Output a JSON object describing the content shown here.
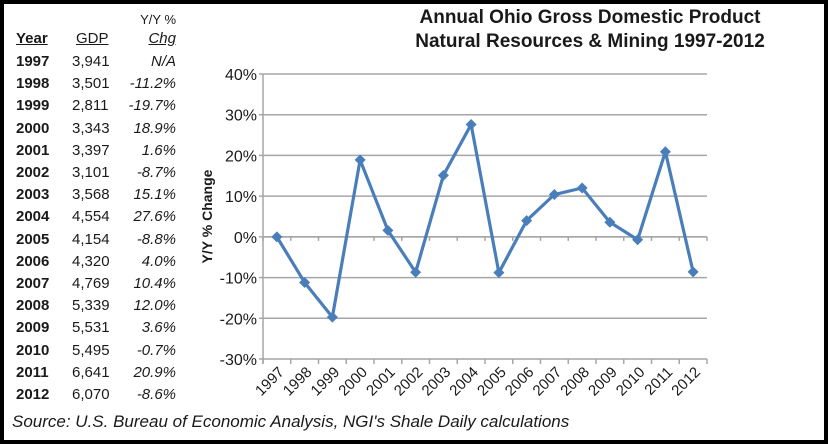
{
  "table": {
    "header_top": "Y/Y %",
    "columns": [
      "Year",
      "GDP",
      "Chg"
    ],
    "rows": [
      {
        "year": "1997",
        "gdp": "3,941",
        "chg": "N/A"
      },
      {
        "year": "1998",
        "gdp": "3,501",
        "chg": "-11.2%"
      },
      {
        "year": "1999",
        "gdp": "2,811",
        "chg": "-19.7%"
      },
      {
        "year": "2000",
        "gdp": "3,343",
        "chg": "18.9%"
      },
      {
        "year": "2001",
        "gdp": "3,397",
        "chg": "1.6%"
      },
      {
        "year": "2002",
        "gdp": "3,101",
        "chg": "-8.7%"
      },
      {
        "year": "2003",
        "gdp": "3,568",
        "chg": "15.1%"
      },
      {
        "year": "2004",
        "gdp": "4,554",
        "chg": "27.6%"
      },
      {
        "year": "2005",
        "gdp": "4,154",
        "chg": "-8.8%"
      },
      {
        "year": "2006",
        "gdp": "4,320",
        "chg": "4.0%"
      },
      {
        "year": "2007",
        "gdp": "4,769",
        "chg": "10.4%"
      },
      {
        "year": "2008",
        "gdp": "5,339",
        "chg": "12.0%"
      },
      {
        "year": "2009",
        "gdp": "5,531",
        "chg": "3.6%"
      },
      {
        "year": "2010",
        "gdp": "5,495",
        "chg": "-0.7%"
      },
      {
        "year": "2011",
        "gdp": "6,641",
        "chg": "20.9%"
      },
      {
        "year": "2012",
        "gdp": "6,070",
        "chg": "-8.6%"
      }
    ]
  },
  "source": "Source: U.S. Bureau of Economic Analysis, NGI's Shale Daily calculations",
  "chart_data": {
    "type": "line",
    "title_lines": [
      "Annual Ohio Gross Domestic Product",
      "Natural Resources & Mining 1997-2012"
    ],
    "ylabel": "Y/Y % Change",
    "xlabel": "",
    "categories": [
      "1997",
      "1998",
      "1999",
      "2000",
      "2001",
      "2002",
      "2003",
      "2004",
      "2005",
      "2006",
      "2007",
      "2008",
      "2009",
      "2010",
      "2011",
      "2012"
    ],
    "values": [
      0,
      -11.2,
      -19.7,
      18.9,
      1.6,
      -8.7,
      15.1,
      27.6,
      -8.8,
      4.0,
      10.4,
      12.0,
      3.6,
      -0.7,
      20.9,
      -8.6
    ],
    "ylim": [
      -30,
      40
    ],
    "yticks": [
      40,
      30,
      20,
      10,
      0,
      -10,
      -20,
      -30
    ],
    "ytick_labels": [
      "40%",
      "30%",
      "20%",
      "10%",
      "0%",
      "-10%",
      "-20%",
      "-30%"
    ],
    "grid": true,
    "legend": "none",
    "marker": "diamond",
    "colors": {
      "series": "#4a7ebb",
      "grid": "#a6a6a6"
    }
  }
}
